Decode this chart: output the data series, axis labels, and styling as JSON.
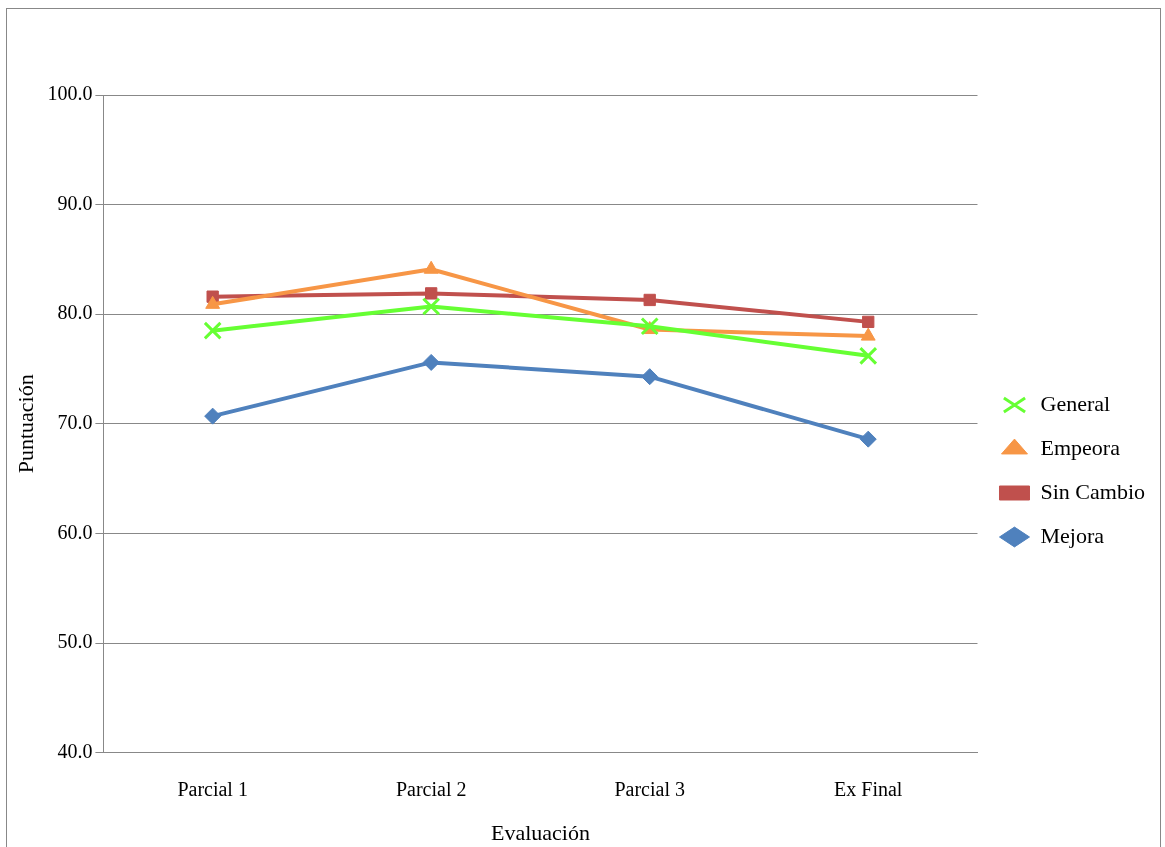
{
  "chart_data": {
    "type": "line",
    "xlabel": "Evaluación",
    "ylabel": "Puntuación",
    "categories": [
      "Parcial 1",
      "Parcial 2",
      "Parcial 3",
      "Ex Final"
    ],
    "series": [
      {
        "name": "Mejora",
        "color": "#4f81bd",
        "marker": "diamond",
        "values": [
          70.7,
          75.6,
          74.3,
          68.6
        ]
      },
      {
        "name": "Sin Cambio",
        "color": "#c0504d",
        "marker": "square",
        "values": [
          81.6,
          81.9,
          81.3,
          79.3
        ]
      },
      {
        "name": "Empeora",
        "color": "#f79646",
        "marker": "triangle",
        "values": [
          80.9,
          84.1,
          78.6,
          78.0
        ]
      },
      {
        "name": "General",
        "color": "#66ff33",
        "marker": "cross",
        "values": [
          78.5,
          80.7,
          78.9,
          76.2
        ]
      }
    ],
    "ylim": [
      40,
      100
    ],
    "yticks": [
      {
        "value": 40,
        "label": "40.0"
      },
      {
        "value": 50,
        "label": "50.0"
      },
      {
        "value": 60,
        "label": "60.0"
      },
      {
        "value": 70,
        "label": "70.0"
      },
      {
        "value": 80,
        "label": "80.0"
      },
      {
        "value": 90,
        "label": "90.0"
      },
      {
        "value": 100,
        "label": "100.0"
      }
    ],
    "grid": "y",
    "legend": "right",
    "line_style": "solid"
  }
}
